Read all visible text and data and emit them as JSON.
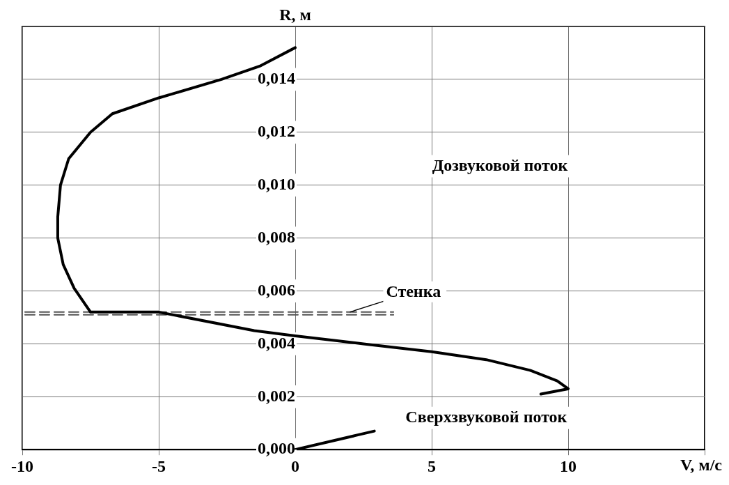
{
  "chart_data": {
    "type": "line",
    "xlabel": "V, м/с",
    "ylabel": "R, м",
    "xlim": [
      -10,
      15
    ],
    "xticks": [
      -10,
      -5,
      0,
      5,
      10,
      {
        "value": 15,
        "label": null
      }
    ],
    "ylim": [
      0,
      0.016
    ],
    "yticks": [
      {
        "value": 0,
        "label": "0,000"
      },
      {
        "value": 0.002,
        "label": "0,002"
      },
      {
        "value": 0.004,
        "label": "0,004"
      },
      {
        "value": 0.006,
        "label": "0,006"
      },
      {
        "value": 0.008,
        "label": "0,008"
      },
      {
        "value": 0.01,
        "label": "0,010"
      },
      {
        "value": 0.012,
        "label": "0,012"
      },
      {
        "value": 0.014,
        "label": "0,014"
      },
      {
        "value": 0.016,
        "label": null
      }
    ],
    "grid": true,
    "marker": "none",
    "series": [
      {
        "color": "#000000",
        "line_style": "solid",
        "x": [
          0,
          -1.3,
          -2.7,
          -5,
          -6.7,
          -7.5,
          -8.3,
          -8.6,
          -8.7,
          -8.7,
          -8.5,
          -8.1,
          -7.5,
          -5,
          -1.5,
          0,
          2.5,
          5,
          7,
          8.6,
          9.6,
          10,
          9,
          null,
          2.9,
          0
        ],
        "values": [
          0.0152,
          0.0145,
          0.014,
          0.0133,
          0.0127,
          0.012,
          0.011,
          0.01,
          0.0088,
          0.008,
          0.007,
          0.0061,
          0.0052,
          0.0052,
          0.0045,
          0.0043,
          0.004,
          0.0037,
          0.0034,
          0.003,
          0.0026,
          0.0023,
          0.0021,
          null,
          0.0007,
          0
        ]
      },
      {
        "color": "#555555",
        "line_style": "dashed",
        "x": [
          -9.9,
          3.6
        ],
        "values": [
          0.0052,
          0.0052
        ]
      },
      {
        "color": "#555555",
        "line_style": "dashed",
        "x": [
          -9.9,
          3.6
        ],
        "values": [
          0.0051,
          0.0051
        ]
      }
    ],
    "annotations": [
      {
        "text": "Стенка",
        "x": 2,
        "y": 0.0052
      },
      "Дозвуковой поток",
      "Сверхзвуковой поток"
    ]
  }
}
